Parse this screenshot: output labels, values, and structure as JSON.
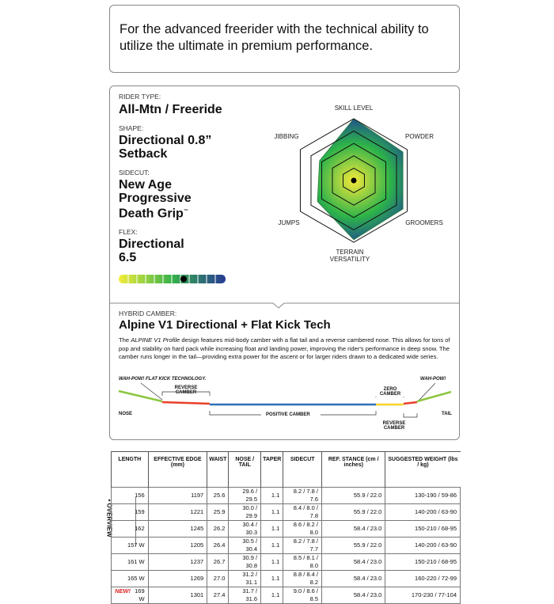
{
  "intro": {
    "text": "For the advanced freerider with the technical ability to utilize the ultimate in premium performance."
  },
  "specs": {
    "rider_type": {
      "label": "RIDER TYPE:",
      "value": "All-Mtn / Freeride"
    },
    "shape": {
      "label": "SHAPE:",
      "value": "Directional 0.8” Setback"
    },
    "sidecut": {
      "label": "SIDECUT:",
      "value": "New Age Progressive Death Grip",
      "mark": "™"
    },
    "flex": {
      "label": "FLEX:",
      "value": "Directional 6.5"
    }
  },
  "radar": {
    "axes": [
      "SKILL LEVEL",
      "POWDER",
      "GROOMERS",
      "TERRAIN VERSATILITY",
      "JUMPS",
      "JIBBING"
    ],
    "values": [
      5,
      4.6,
      4.6,
      4.8,
      3.4,
      3.2
    ],
    "rlim": [
      0,
      5
    ],
    "rticks": [
      1,
      2,
      3,
      4,
      5
    ]
  },
  "camber": {
    "label": "HYBRID CAMBER:",
    "title": "Alpine V1 Directional + Flat Kick Tech",
    "description": {
      "lead": "The",
      "emphasis": "ALPINE V1 Profile",
      "text": "design features mid-body camber with a flat tail and a reverse cambered nose. This allows for tons of pop and stability on hard pack while increasing float and landing power, improving the rider's performance in deep snow. The camber runs longer in the tail—providing extra power for the ascent or for larger riders drawn to a dedicated wide series."
    },
    "diagram": {
      "nose_tech": "WAH-POW! FLAT KICK TECHNOLOGY.",
      "nose_reverse": "REVERSE CAMBER",
      "zero": "ZERO CAMBER",
      "tail_tech": "WAH-POW!",
      "nose": "NOSE",
      "tail": "TAIL",
      "positive": "POSITIVE CAMBER",
      "tail_reverse": "REVERSE CAMBER"
    }
  },
  "table": {
    "side_label": "• OVERVIEW",
    "new_label": "NEW!",
    "headers": [
      "LENGTH",
      "EFFECTIVE EDGE (mm)",
      "WAIST",
      "NOSE / TAIL",
      "TAPER",
      "SIDECUT",
      "REF. STANCE (cm / inches)",
      "SUGGESTED WEIGHT (lbs / kg)"
    ],
    "rows": [
      [
        "156",
        "1197",
        "25.6",
        "29.6 / 29.5",
        "1.1",
        "8.2 / 7.8 / 7.6",
        "55.9 / 22.0",
        "130-190 / 59-86"
      ],
      [
        "159",
        "1221",
        "25.9",
        "30.0 / 29.9",
        "1.1",
        "8.4 / 8.0 / 7.8",
        "55.9 / 22.0",
        "140-200 / 63-90"
      ],
      [
        "162",
        "1245",
        "26.2",
        "30.4 / 30.3",
        "1.1",
        "8.6 / 8.2 / 8.0",
        "58.4 / 23.0",
        "150-210 / 68-95"
      ],
      [
        "157 W",
        "1205",
        "26.4",
        "30.5 / 30.4",
        "1.1",
        "8.2 / 7.8 / 7.7",
        "55.9 / 22.0",
        "140-200 / 63-90"
      ],
      [
        "161 W",
        "1237",
        "26.7",
        "30.9 / 30.8",
        "1.1",
        "8.5 / 8.1 / 8.0",
        "58.4 / 23.0",
        "150-210 / 68-95"
      ],
      [
        "165 W",
        "1269",
        "27.0",
        "31.2 / 31.1",
        "1.1",
        "8.8 / 8.4 / 8.2",
        "58.4 / 23.0",
        "160-220 / 72-99"
      ],
      [
        "169 W",
        "1301",
        "27.4",
        "31.7 / 31.6",
        "1.1",
        "9.0 / 8.6 / 8.5",
        "58.4 / 23.0",
        "170-230 / 77-104"
      ]
    ]
  }
}
